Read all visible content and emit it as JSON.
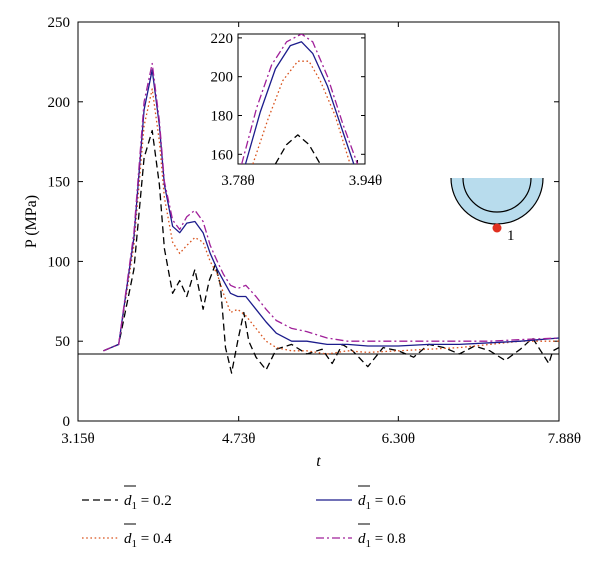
{
  "chart_data": [
    {
      "type": "line",
      "xlabel": "t",
      "ylabel": "P (MPa)",
      "x_tick_labels": [
        "3.15θ",
        "4.73θ",
        "6.30θ",
        "7.88θ"
      ],
      "x_tick_values": [
        3.15,
        4.73,
        6.3,
        7.88
      ],
      "xlim": [
        3.15,
        7.88
      ],
      "ylim": [
        0,
        250
      ],
      "y_ticks": [
        0,
        50,
        100,
        150,
        200,
        250
      ],
      "reference_line_y": 42,
      "legend_position": "bottom",
      "series": [
        {
          "name": "d1 = 0.2",
          "color": "#000000",
          "dash": "dashed",
          "x": [
            3.4,
            3.55,
            3.7,
            3.8,
            3.88,
            3.95,
            4.0,
            4.08,
            4.15,
            4.22,
            4.3,
            4.38,
            4.44,
            4.5,
            4.55,
            4.6,
            4.66,
            4.72,
            4.78,
            4.83,
            4.9,
            5.0,
            5.1,
            5.25,
            5.4,
            5.55,
            5.65,
            5.75,
            5.85,
            6.0,
            6.15,
            6.3,
            6.45,
            6.6,
            6.75,
            6.9,
            7.05,
            7.2,
            7.35,
            7.5,
            7.62,
            7.7,
            7.78,
            7.82,
            7.88
          ],
          "y": [
            44,
            48,
            95,
            165,
            182,
            148,
            108,
            80,
            88,
            78,
            95,
            70,
            88,
            98,
            85,
            46,
            30,
            50,
            68,
            50,
            40,
            32,
            45,
            48,
            42,
            45,
            36,
            48,
            44,
            34,
            46,
            44,
            40,
            48,
            46,
            42,
            47,
            44,
            38,
            45,
            52,
            44,
            36,
            44,
            46
          ]
        },
        {
          "name": "d1 = 0.4",
          "color": "#d9541e",
          "dash": "dotted",
          "x": [
            3.4,
            3.55,
            3.7,
            3.8,
            3.88,
            3.95,
            4.0,
            4.08,
            4.15,
            4.22,
            4.3,
            4.38,
            4.45,
            4.52,
            4.58,
            4.65,
            4.72,
            4.8,
            4.9,
            5.0,
            5.1,
            5.25,
            5.4,
            5.6,
            5.8,
            6.0,
            6.3,
            6.6,
            6.9,
            7.2,
            7.5,
            7.88
          ],
          "y": [
            44,
            48,
            110,
            185,
            208,
            175,
            140,
            112,
            105,
            110,
            115,
            112,
            100,
            92,
            80,
            68,
            70,
            66,
            58,
            50,
            46,
            44,
            44,
            42,
            44,
            43,
            44,
            45,
            46,
            48,
            50,
            50
          ]
        },
        {
          "name": "d1 = 0.6",
          "color": "#1c1c8c",
          "dash": "solid",
          "x": [
            3.4,
            3.55,
            3.7,
            3.8,
            3.88,
            3.95,
            4.0,
            4.08,
            4.15,
            4.22,
            4.3,
            4.38,
            4.45,
            4.52,
            4.58,
            4.65,
            4.72,
            4.8,
            4.9,
            5.0,
            5.1,
            5.25,
            5.4,
            5.6,
            5.8,
            6.0,
            6.3,
            6.6,
            6.9,
            7.2,
            7.5,
            7.88
          ],
          "y": [
            44,
            48,
            115,
            195,
            220,
            185,
            148,
            122,
            118,
            124,
            125,
            118,
            105,
            95,
            88,
            80,
            78,
            78,
            70,
            62,
            55,
            50,
            50,
            48,
            48,
            47,
            47,
            48,
            48,
            49,
            50,
            52
          ]
        },
        {
          "name": "d1 = 0.8",
          "color": "#a0209a",
          "dash": "dashdot",
          "x": [
            3.4,
            3.55,
            3.7,
            3.8,
            3.88,
            3.95,
            4.0,
            4.08,
            4.15,
            4.22,
            4.3,
            4.38,
            4.45,
            4.52,
            4.58,
            4.65,
            4.72,
            4.8,
            4.9,
            5.0,
            5.1,
            5.25,
            5.4,
            5.6,
            5.8,
            6.0,
            6.3,
            6.6,
            6.9,
            7.2,
            7.5,
            7.88
          ],
          "y": [
            44,
            48,
            118,
            200,
            224,
            188,
            150,
            126,
            120,
            128,
            132,
            125,
            110,
            100,
            92,
            85,
            83,
            85,
            78,
            70,
            63,
            58,
            56,
            52,
            50,
            50,
            50,
            50,
            50,
            50,
            51,
            52
          ]
        }
      ]
    },
    {
      "type": "line",
      "inset": true,
      "x_tick_labels": [
        "3.78θ",
        "3.94θ"
      ],
      "x_tick_values": [
        3.78,
        3.94
      ],
      "xlim": [
        3.78,
        3.95
      ],
      "ylim": [
        155,
        222
      ],
      "y_ticks": [
        160,
        180,
        200,
        220
      ],
      "series": [
        {
          "name": "d1 = 0.2",
          "x": [
            3.83,
            3.845,
            3.86,
            3.875,
            3.89
          ],
          "y": [
            155,
            165,
            170,
            165,
            155
          ]
        },
        {
          "name": "d1 = 0.4",
          "x": [
            3.8,
            3.82,
            3.84,
            3.86,
            3.875,
            3.89,
            3.91,
            3.93
          ],
          "y": [
            155,
            178,
            198,
            208,
            208,
            198,
            180,
            155
          ]
        },
        {
          "name": "d1 = 0.6",
          "x": [
            3.79,
            3.81,
            3.83,
            3.85,
            3.865,
            3.88,
            3.9,
            3.92,
            3.935
          ],
          "y": [
            155,
            182,
            204,
            216,
            218,
            212,
            195,
            172,
            155
          ]
        },
        {
          "name": "d1 = 0.8",
          "x": [
            3.785,
            3.805,
            3.825,
            3.845,
            3.865,
            3.88,
            3.9,
            3.92,
            3.94
          ],
          "y": [
            155,
            184,
            206,
            218,
            222,
            218,
            200,
            176,
            155
          ]
        }
      ]
    }
  ],
  "diagram": {
    "point_label": "1",
    "fill_color": "#b8dced",
    "point_color": "#e03020"
  },
  "legend": [
    {
      "label_var": "d",
      "label_sub": "1",
      "label_value": " = 0.2"
    },
    {
      "label_var": "d",
      "label_sub": "1",
      "label_value": " = 0.4"
    },
    {
      "label_var": "d",
      "label_sub": "1",
      "label_value": " = 0.6"
    },
    {
      "label_var": "d",
      "label_sub": "1",
      "label_value": " = 0.8"
    }
  ]
}
